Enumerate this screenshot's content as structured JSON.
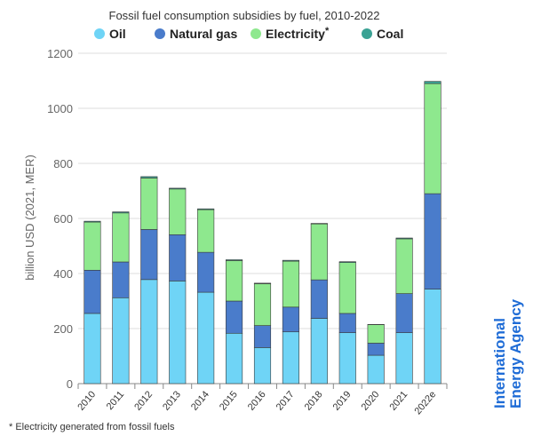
{
  "chart_data": {
    "type": "bar",
    "stacked": true,
    "title": "Fossil fuel consumption subsidies by fuel, 2010-2022",
    "ylabel": "billion USD (2021, MER)",
    "xlabel": "",
    "ylim": [
      0,
      1200
    ],
    "yticks": [
      0,
      200,
      400,
      600,
      800,
      1000,
      1200
    ],
    "categories": [
      "2010",
      "2011",
      "2012",
      "2013",
      "2014",
      "2015",
      "2016",
      "2017",
      "2018",
      "2019",
      "2020",
      "2021",
      "2022e"
    ],
    "series": [
      {
        "name": "Oil",
        "color": "#6fd4f6",
        "values": [
          255,
          312,
          378,
          373,
          332,
          183,
          131,
          188,
          237,
          185,
          103,
          185,
          343
        ]
      },
      {
        "name": "Natural gas",
        "color": "#4a7ccb",
        "values": [
          157,
          130,
          182,
          168,
          145,
          117,
          80,
          90,
          140,
          70,
          44,
          142,
          347
        ]
      },
      {
        "name": "Electricity",
        "legend_suffix": "*",
        "color": "#8ee88e",
        "values": [
          175,
          178,
          187,
          166,
          155,
          147,
          152,
          167,
          203,
          185,
          67,
          199,
          400
        ]
      },
      {
        "name": "Coal",
        "color": "#3aa294",
        "values": [
          3,
          4,
          5,
          3,
          3,
          3,
          2,
          3,
          2,
          3,
          1,
          3,
          8
        ]
      }
    ],
    "legend": "top",
    "grid": true,
    "footnote": "* Electricity generated from fossil fuels",
    "watermark": "International Energy Agency"
  }
}
